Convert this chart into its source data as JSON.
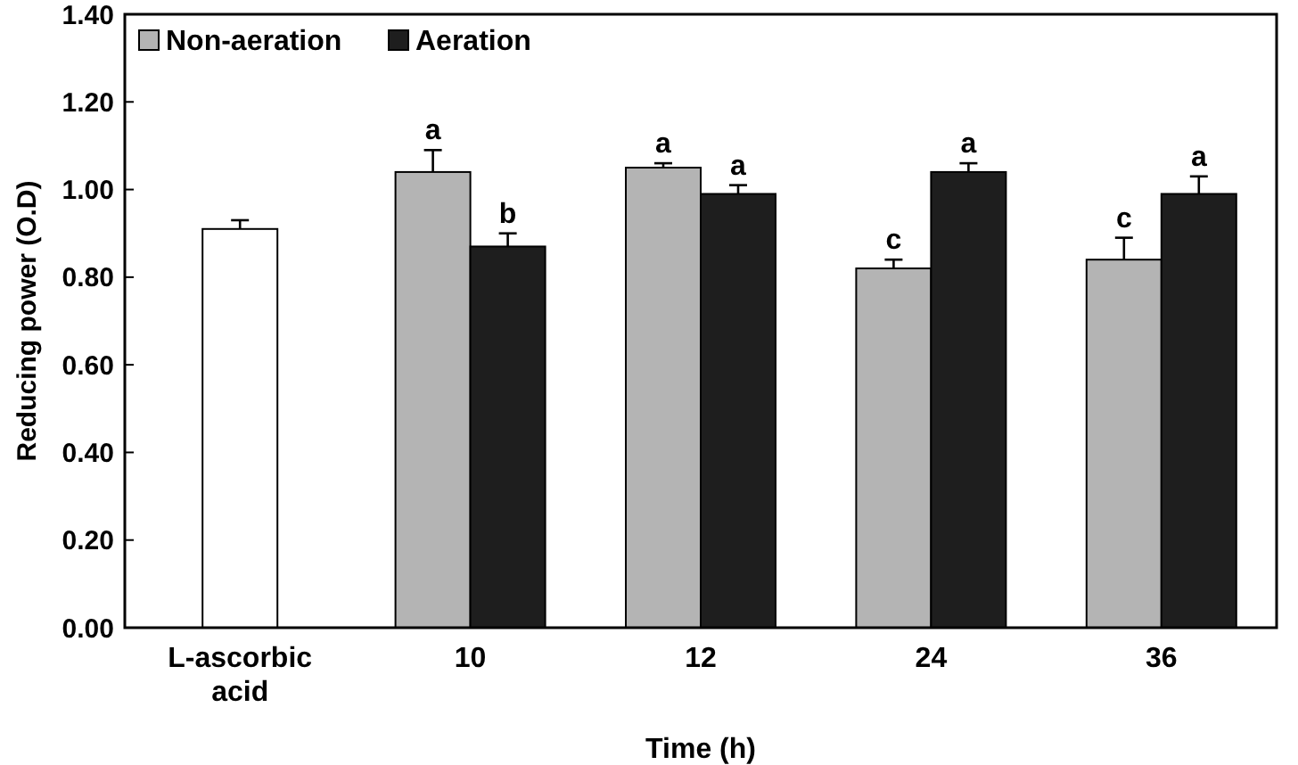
{
  "chart_data": {
    "type": "bar",
    "xlabel": "Time (h)",
    "ylabel": "Reducing power (O.D)",
    "categories": [
      "L-ascorbic\nacid",
      "10",
      "12",
      "24",
      "36"
    ],
    "series": [
      {
        "color": "#ffffff",
        "values": [
          0.91,
          null,
          null,
          null,
          null
        ],
        "errors": [
          0.02,
          null,
          null,
          null,
          null
        ]
      },
      {
        "name": "Non-aeration",
        "color": "#b4b4b4",
        "values": [
          null,
          1.04,
          1.05,
          0.82,
          0.84
        ],
        "errors": [
          null,
          0.05,
          0.01,
          0.02,
          0.05
        ]
      },
      {
        "name": "Aeration",
        "color": "#1e1e1e",
        "values": [
          null,
          0.87,
          0.99,
          1.04,
          0.99
        ],
        "errors": [
          null,
          0.03,
          0.02,
          0.02,
          0.04
        ]
      }
    ],
    "ylim": [
      0,
      1.4
    ],
    "yticks": [
      {
        "value": 0,
        "label": "0.00"
      },
      {
        "value": 0.2,
        "label": "0.20"
      },
      {
        "value": 0.4,
        "label": "0.40"
      },
      {
        "value": 0.6,
        "label": "0.60"
      },
      {
        "value": 0.8,
        "label": "0.80"
      },
      {
        "value": 1,
        "label": "1.00"
      },
      {
        "value": 1.2,
        "label": "1.20"
      },
      {
        "value": 1.4,
        "label": "1.40"
      }
    ],
    "legend": "top left",
    "grid": false,
    "annotations": [
      {
        "text": "a",
        "x": "10",
        "y": 1.04
      },
      {
        "text": "b",
        "x": "10",
        "y": 0.87
      },
      {
        "text": "a",
        "x": "12",
        "y": 1.05
      },
      {
        "text": "a",
        "x": "12",
        "y": 0.99
      },
      {
        "text": "c",
        "x": "24",
        "y": 0.82
      },
      {
        "text": "a",
        "x": "24",
        "y": 1.04
      },
      {
        "text": "c",
        "x": "36",
        "y": 0.84
      },
      {
        "text": "a",
        "x": "36",
        "y": 0.99
      }
    ]
  }
}
